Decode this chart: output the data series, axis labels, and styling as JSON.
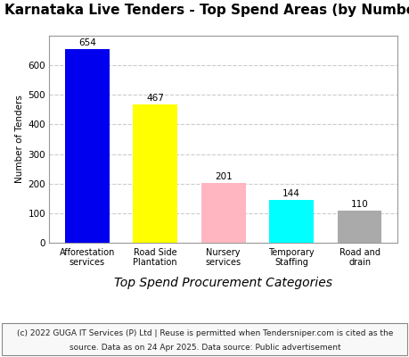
{
  "title": "Karnataka Live Tenders - Top Spend Areas (by Number)",
  "categories": [
    "Afforestation\nservices",
    "Road Side\nPlantation",
    "Nursery\nservices",
    "Temporary\nStaffing",
    "Road and\ndrain"
  ],
  "values": [
    654,
    467,
    201,
    144,
    110
  ],
  "bar_colors": [
    "#0000ee",
    "#ffff00",
    "#ffb6c1",
    "#00ffff",
    "#aaaaaa"
  ],
  "ylabel": "Number of Tenders",
  "xlabel": "Top Spend Procurement Categories",
  "ylim": [
    0,
    700
  ],
  "yticks": [
    0,
    100,
    200,
    300,
    400,
    500,
    600
  ],
  "footnote_line1": "(c) 2022 GUGA IT Services (P) Ltd | Reuse is permitted when Tendersniper.com is cited as the",
  "footnote_line2": "source. Data as on 24 Apr 2025. Data source: Public advertisement",
  "background_color": "#ffffff",
  "plot_bg_color": "#ffffff",
  "grid_color": "#cccccc",
  "title_fontsize": 11,
  "bar_label_fontsize": 7.5,
  "tick_fontsize": 7.5,
  "xtick_fontsize": 7,
  "xlabel_fontsize": 10,
  "ylabel_fontsize": 7.5,
  "footnote_fontsize": 6.5
}
